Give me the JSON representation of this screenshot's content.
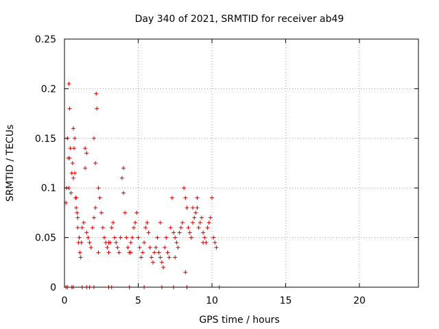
{
  "chart_data": {
    "type": "scatter",
    "title": "Day 340 of 2021, SRMTID for receiver ab49",
    "xlabel": "GPS time / hours",
    "ylabel": "SRMTID / TECUs",
    "xlim": [
      0,
      24
    ],
    "ylim": [
      0,
      0.25
    ],
    "xticks": [
      0,
      5,
      10,
      15,
      20
    ],
    "xtick_labels": [
      "0",
      "5",
      "10",
      "15",
      "20"
    ],
    "yticks": [
      0,
      0.05,
      0.1,
      0.15,
      0.2,
      0.25
    ],
    "ytick_labels": [
      "0",
      "0.05",
      "0.1",
      "0.15",
      "0.2",
      "0.25"
    ],
    "grid": true,
    "marker": "+",
    "color": "#d40000",
    "series": [
      {
        "name": "SRMTID",
        "x": [
          0.1,
          0.15,
          0.2,
          0.25,
          0.3,
          0.35,
          0.4,
          0.45,
          0.5,
          0.55,
          0.6,
          0.65,
          0.7,
          0.75,
          0.8,
          0.85,
          0.9,
          0.95,
          1.0,
          1.05,
          1.1,
          1.15,
          1.2,
          1.3,
          1.4,
          1.5,
          1.6,
          1.7,
          1.8,
          1.9,
          2.0,
          2.1,
          2.15,
          2.2,
          2.3,
          2.4,
          2.5,
          2.6,
          2.7,
          2.8,
          2.9,
          3.0,
          3.1,
          3.2,
          3.3,
          3.4,
          3.5,
          3.6,
          3.7,
          3.8,
          3.9,
          4.0,
          4.1,
          4.2,
          4.3,
          4.4,
          4.5,
          4.6,
          4.7,
          4.8,
          4.9,
          5.0,
          5.1,
          5.2,
          5.3,
          5.4,
          5.5,
          5.6,
          5.7,
          5.8,
          5.9,
          6.0,
          6.1,
          6.2,
          6.3,
          6.4,
          6.5,
          6.6,
          6.7,
          6.8,
          6.9,
          7.0,
          7.1,
          7.2,
          7.3,
          7.4,
          7.5,
          7.6,
          7.7,
          7.8,
          7.9,
          8.0,
          8.1,
          8.2,
          8.3,
          8.4,
          8.5,
          8.6,
          8.7,
          8.8,
          8.9,
          9.0,
          9.1,
          9.2,
          9.3,
          9.4,
          9.5,
          9.6,
          9.7,
          9.8,
          9.9,
          10.0,
          10.1,
          10.2,
          10.3,
          0.3,
          0.35,
          0.6,
          0.7,
          2.0,
          2.1,
          2.3,
          1.4,
          1.5,
          0.8,
          0.9,
          3.0,
          4.0,
          4.5,
          6.5,
          7.5,
          8.2,
          8.7,
          9.0,
          9.4,
          0.1,
          0.2,
          0.5,
          0.6,
          1.2,
          1.5,
          1.7,
          2.0,
          3.0,
          3.2,
          4.4,
          5.4,
          6.6,
          7.4,
          8.3,
          10.5
        ],
        "y": [
          0.085,
          0.1,
          0.15,
          0.13,
          0.205,
          0.18,
          0.14,
          0.095,
          0.115,
          0.125,
          0.16,
          0.14,
          0.115,
          0.09,
          0.08,
          0.075,
          0.06,
          0.045,
          0.05,
          0.035,
          0.03,
          0.045,
          0.06,
          0.065,
          0.14,
          0.055,
          0.05,
          0.045,
          0.04,
          0.06,
          0.07,
          0.08,
          0.195,
          0.18,
          0.1,
          0.09,
          0.075,
          0.06,
          0.05,
          0.045,
          0.04,
          0.035,
          0.045,
          0.06,
          0.065,
          0.05,
          0.045,
          0.04,
          0.035,
          0.05,
          0.11,
          0.095,
          0.075,
          0.05,
          0.04,
          0.035,
          0.045,
          0.05,
          0.06,
          0.065,
          0.075,
          0.05,
          0.04,
          0.03,
          0.035,
          0.045,
          0.06,
          0.065,
          0.055,
          0.04,
          0.03,
          0.025,
          0.035,
          0.04,
          0.05,
          0.035,
          0.03,
          0.025,
          0.02,
          0.04,
          0.05,
          0.035,
          0.03,
          0.06,
          0.09,
          0.055,
          0.05,
          0.045,
          0.04,
          0.055,
          0.06,
          0.065,
          0.1,
          0.09,
          0.08,
          0.06,
          0.055,
          0.05,
          0.065,
          0.07,
          0.075,
          0.08,
          0.06,
          0.065,
          0.07,
          0.055,
          0.05,
          0.045,
          0.06,
          0.065,
          0.07,
          0.09,
          0.05,
          0.045,
          0.04,
          0.1,
          0.13,
          0.11,
          0.15,
          0.15,
          0.125,
          0.035,
          0.12,
          0.135,
          0.09,
          0.07,
          0.045,
          0.12,
          0.035,
          0.065,
          0.03,
          0.015,
          0.08,
          0.09,
          0.045,
          0.0,
          0.0,
          0.0,
          0.0,
          0.0,
          0.0,
          0.0,
          0.0,
          0.0,
          0.0,
          0.0,
          0.0,
          0.0,
          0.0,
          0.0,
          0.0
        ]
      }
    ]
  }
}
